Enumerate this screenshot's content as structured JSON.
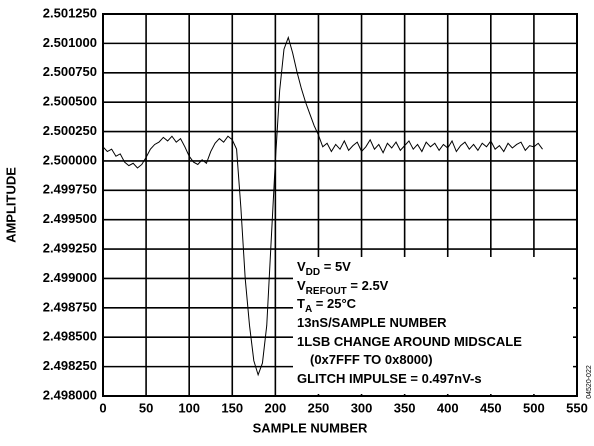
{
  "chart_data": {
    "type": "line",
    "xlabel": "SAMPLE NUMBER",
    "ylabel": "AMPLITUDE",
    "xlim": [
      0,
      550
    ],
    "xticks": [
      0,
      50,
      100,
      150,
      200,
      250,
      300,
      350,
      400,
      450,
      500,
      550
    ],
    "ylim": [
      2.498,
      2.50125
    ],
    "yticks": [
      {
        "value": 2.498,
        "label": "2.498000"
      },
      {
        "value": 2.49825,
        "label": "2.498250"
      },
      {
        "value": 2.4985,
        "label": "2.498500"
      },
      {
        "value": 2.49875,
        "label": "2.498750"
      },
      {
        "value": 2.499,
        "label": "2.499000"
      },
      {
        "value": 2.49925,
        "label": "2.499250"
      },
      {
        "value": 2.4995,
        "label": "2.499500"
      },
      {
        "value": 2.49975,
        "label": "2.499750"
      },
      {
        "value": 2.5,
        "label": "2.500000"
      },
      {
        "value": 2.50025,
        "label": "2.500250"
      },
      {
        "value": 2.5005,
        "label": "2.500500"
      },
      {
        "value": 2.50075,
        "label": "2.500750"
      },
      {
        "value": 2.501,
        "label": "2.501000"
      },
      {
        "value": 2.50125,
        "label": "2.501250"
      }
    ],
    "grid": true,
    "color": "#000000",
    "x": [
      0,
      5,
      10,
      15,
      20,
      25,
      30,
      35,
      40,
      45,
      50,
      55,
      60,
      65,
      70,
      75,
      80,
      85,
      90,
      95,
      100,
      105,
      110,
      115,
      120,
      125,
      130,
      135,
      140,
      145,
      150,
      155,
      160,
      165,
      170,
      175,
      180,
      185,
      190,
      195,
      200,
      205,
      210,
      215,
      220,
      225,
      230,
      235,
      240,
      245,
      250,
      255,
      260,
      265,
      270,
      275,
      280,
      285,
      290,
      295,
      300,
      305,
      310,
      315,
      320,
      325,
      330,
      335,
      340,
      345,
      350,
      355,
      360,
      365,
      370,
      375,
      380,
      385,
      390,
      395,
      400,
      405,
      410,
      415,
      420,
      425,
      430,
      435,
      440,
      445,
      450,
      455,
      460,
      465,
      470,
      475,
      480,
      485,
      490,
      495,
      500,
      505,
      510
    ],
    "values": [
      2.50012,
      2.50008,
      2.5001,
      2.50004,
      2.50006,
      2.49999,
      2.49996,
      2.49998,
      2.49994,
      2.49997,
      2.50003,
      2.5001,
      2.50014,
      2.50016,
      2.5002,
      2.50017,
      2.50021,
      2.50016,
      2.50019,
      2.50012,
      2.50004,
      2.49999,
      2.49997,
      2.50001,
      2.49998,
      2.50008,
      2.50015,
      2.50019,
      2.50016,
      2.50021,
      2.50018,
      2.5001,
      2.4996,
      2.499,
      2.4986,
      2.4983,
      2.49818,
      2.49828,
      2.4986,
      2.4993,
      2.5,
      2.5006,
      2.50095,
      2.50105,
      2.50092,
      2.50076,
      2.50062,
      2.5005,
      2.5004,
      2.5003,
      2.50022,
      2.50012,
      2.50015,
      2.50008,
      2.50014,
      2.5001,
      2.50017,
      2.50009,
      2.50013,
      2.50016,
      2.50008,
      2.50012,
      2.50018,
      2.5001,
      2.50014,
      2.50007,
      2.50015,
      2.50011,
      2.50016,
      2.50009,
      2.50013,
      2.50017,
      2.5001,
      2.50014,
      2.50008,
      2.50016,
      2.50012,
      2.50015,
      2.50009,
      2.50014,
      2.50011,
      2.50017,
      2.50008,
      2.50013,
      2.50016,
      2.5001,
      2.50014,
      2.50009,
      2.50015,
      2.50012,
      2.50017,
      2.5001,
      2.50013,
      2.50008,
      2.50015,
      2.50011,
      2.50014,
      2.50016,
      2.50009,
      2.50013,
      2.50012,
      2.50015,
      2.5001
    ],
    "annotation": [
      [
        "V",
        "DD",
        " = 5V"
      ],
      [
        "V",
        "REFOUT",
        " = 2.5V"
      ],
      [
        "T",
        "A",
        " = 25°C"
      ],
      [
        "13nS/SAMPLE NUMBER"
      ],
      [
        "1LSB CHANGE AROUND MIDSCALE"
      ],
      [
        "(0x7FFF TO 0x8000)"
      ],
      [
        "GLITCH IMPULSE = 0.497nV-s"
      ]
    ],
    "figure_id": "04520-022"
  }
}
